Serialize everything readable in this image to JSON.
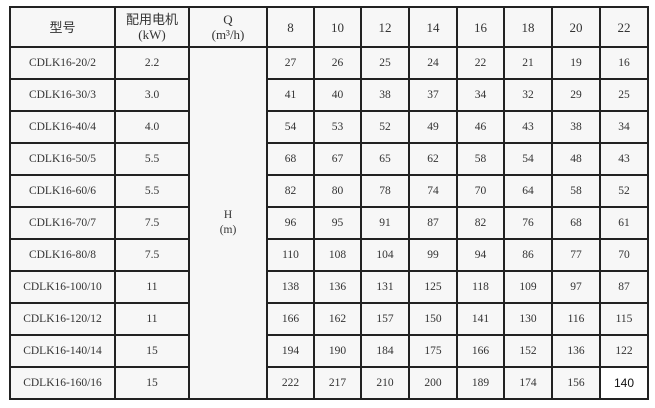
{
  "header": {
    "model": "型号",
    "motor_line1": "配用电机",
    "motor_line2": "(kW)",
    "q_line1": "Q",
    "q_line2": "(m³/h)",
    "flows": [
      "8",
      "10",
      "12",
      "14",
      "16",
      "18",
      "20",
      "22"
    ]
  },
  "h_label": {
    "line1": "H",
    "line2": "(m)"
  },
  "rows": [
    {
      "model": "CDLK16-20/2",
      "kw": "2.2",
      "h": [
        "27",
        "26",
        "25",
        "24",
        "22",
        "21",
        "19",
        "16"
      ]
    },
    {
      "model": "CDLK16-30/3",
      "kw": "3.0",
      "h": [
        "41",
        "40",
        "38",
        "37",
        "34",
        "32",
        "29",
        "25"
      ]
    },
    {
      "model": "CDLK16-40/4",
      "kw": "4.0",
      "h": [
        "54",
        "53",
        "52",
        "49",
        "46",
        "43",
        "38",
        "34"
      ]
    },
    {
      "model": "CDLK16-50/5",
      "kw": "5.5",
      "h": [
        "68",
        "67",
        "65",
        "62",
        "58",
        "54",
        "48",
        "43"
      ]
    },
    {
      "model": "CDLK16-60/6",
      "kw": "5.5",
      "h": [
        "82",
        "80",
        "78",
        "74",
        "70",
        "64",
        "58",
        "52"
      ]
    },
    {
      "model": "CDLK16-70/7",
      "kw": "7.5",
      "h": [
        "96",
        "95",
        "91",
        "87",
        "82",
        "76",
        "68",
        "61"
      ]
    },
    {
      "model": "CDLK16-80/8",
      "kw": "7.5",
      "h": [
        "110",
        "108",
        "104",
        "99",
        "94",
        "86",
        "77",
        "70"
      ]
    },
    {
      "model": "CDLK16-100/10",
      "kw": "11",
      "h": [
        "138",
        "136",
        "131",
        "125",
        "118",
        "109",
        "97",
        "87"
      ]
    },
    {
      "model": "CDLK16-120/12",
      "kw": "11",
      "h": [
        "166",
        "162",
        "157",
        "150",
        "141",
        "130",
        "116",
        "115"
      ]
    },
    {
      "model": "CDLK16-140/14",
      "kw": "15",
      "h": [
        "194",
        "190",
        "184",
        "175",
        "166",
        "152",
        "136",
        "122"
      ]
    },
    {
      "model": "CDLK16-160/16",
      "kw": "15",
      "h": [
        "222",
        "217",
        "210",
        "200",
        "189",
        "174",
        "156",
        "140"
      ]
    }
  ]
}
